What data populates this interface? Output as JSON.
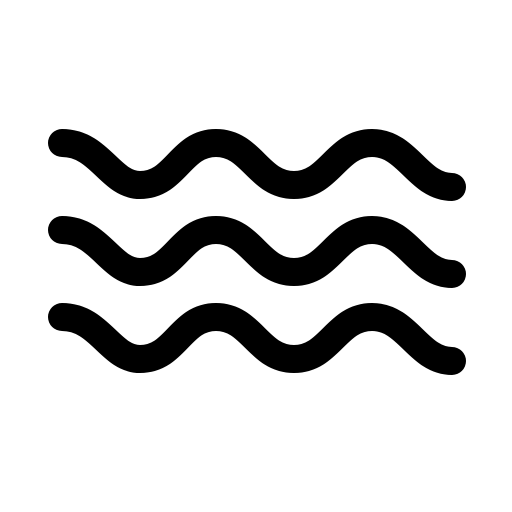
{
  "icon": {
    "name": "water-waves-icon",
    "color": "#000000",
    "background": "#ffffff",
    "wave_count": 3,
    "humps_per_wave": 3
  }
}
